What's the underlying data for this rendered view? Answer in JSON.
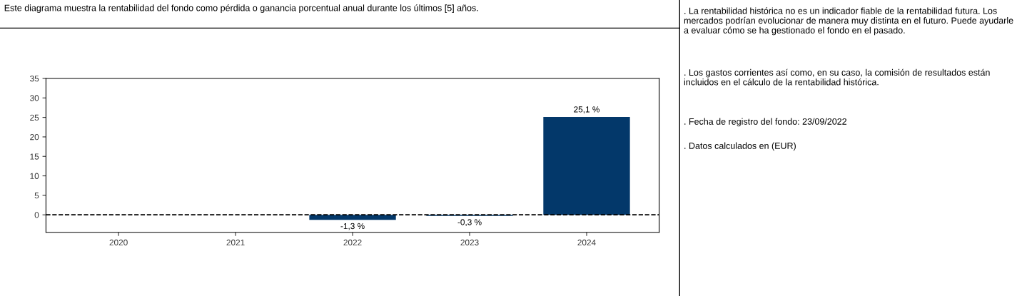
{
  "chart_data": {
    "type": "bar",
    "title": "Este diagrama muestra la rentabilidad del fondo como pérdida o ganancia porcentual anual durante los últimos [5] años.",
    "categories": [
      "2020",
      "2021",
      "2022",
      "2023",
      "2024"
    ],
    "series": [
      {
        "color": "#03386a",
        "values": [
          null,
          null,
          -1.3,
          -0.3,
          25.1
        ],
        "value_labels": [
          null,
          null,
          "-1,3 %",
          "-0,3 %",
          "25,1 %"
        ]
      }
    ],
    "ylim": [
      -4.5,
      35
    ],
    "yticks": [
      0,
      5,
      10,
      15,
      20,
      25,
      30,
      35
    ],
    "ref_lines": [
      {
        "axis": "y",
        "value": 0,
        "color": "#000000",
        "line_style": "dashed"
      }
    ],
    "grid": false,
    "legend": false,
    "annotations": [
      ". La rentabilidad histórica no es un indicador fiable de la rentabilidad futura. Los mercados podrían evolucionar de manera muy distinta en el futuro. Puede ayudarle a evaluar cómo se ha gestionado el fondo en el pasado.",
      ". Los gastos corrientes así como, en su caso, la comisión de resultados están incluidos en el cálculo de la rentabilidad histórica.",
      ". Fecha de registro del fondo: 23/09/2022",
      ". Datos calculados en (EUR)"
    ]
  }
}
